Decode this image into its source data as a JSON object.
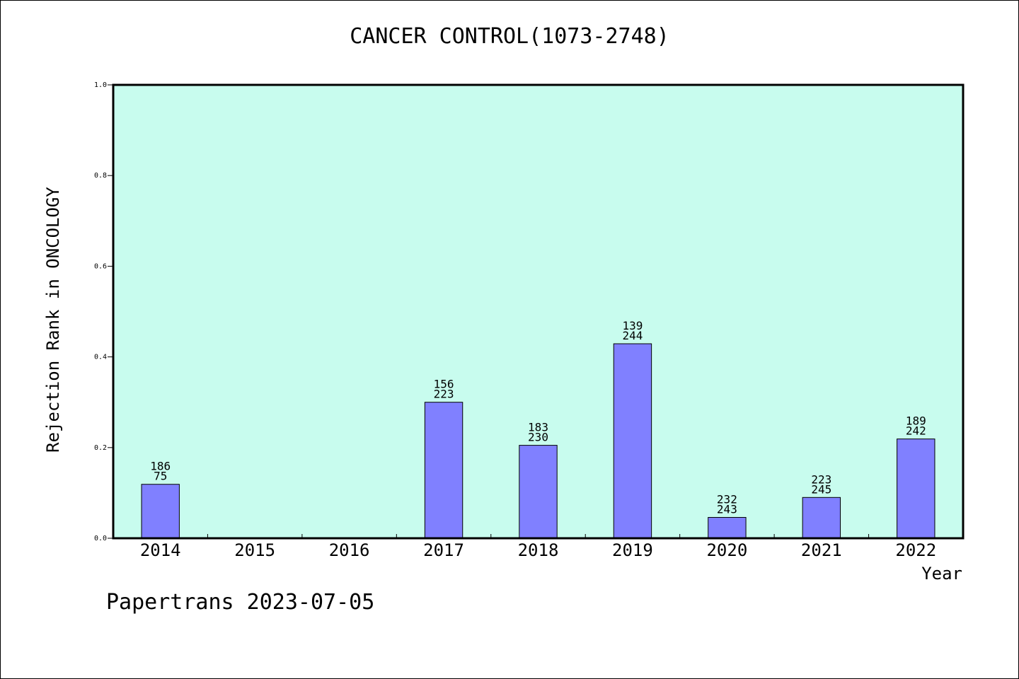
{
  "chart_data": {
    "type": "bar",
    "title": "CANCER CONTROL(1073-2748)",
    "xlabel": "Year",
    "ylabel": "Rejection Rank in ONCOLOGY",
    "categories": [
      "2014",
      "2015",
      "2016",
      "2017",
      "2018",
      "2019",
      "2020",
      "2021",
      "2022"
    ],
    "values": [
      0.119,
      null,
      null,
      0.3,
      0.205,
      0.429,
      0.046,
      0.09,
      0.219
    ],
    "bar_labels": [
      [
        "186",
        "75"
      ],
      null,
      null,
      [
        "156",
        "223"
      ],
      [
        "183",
        "230"
      ],
      [
        "139",
        "244"
      ],
      [
        "232",
        "243"
      ],
      [
        "223",
        "245"
      ],
      [
        "189",
        "242"
      ]
    ],
    "ylim": [
      0,
      1.0
    ],
    "yticks": [
      "0.0",
      "0.2",
      "0.4",
      "0.6",
      "0.8",
      "1.0"
    ],
    "grid": false,
    "colors": {
      "plot_background": "#c8fcee",
      "bar_fill": "#8080ff",
      "bar_stroke": "#000000",
      "axis": "#000000"
    }
  },
  "footer": {
    "text": "Papertrans 2023-07-05"
  }
}
